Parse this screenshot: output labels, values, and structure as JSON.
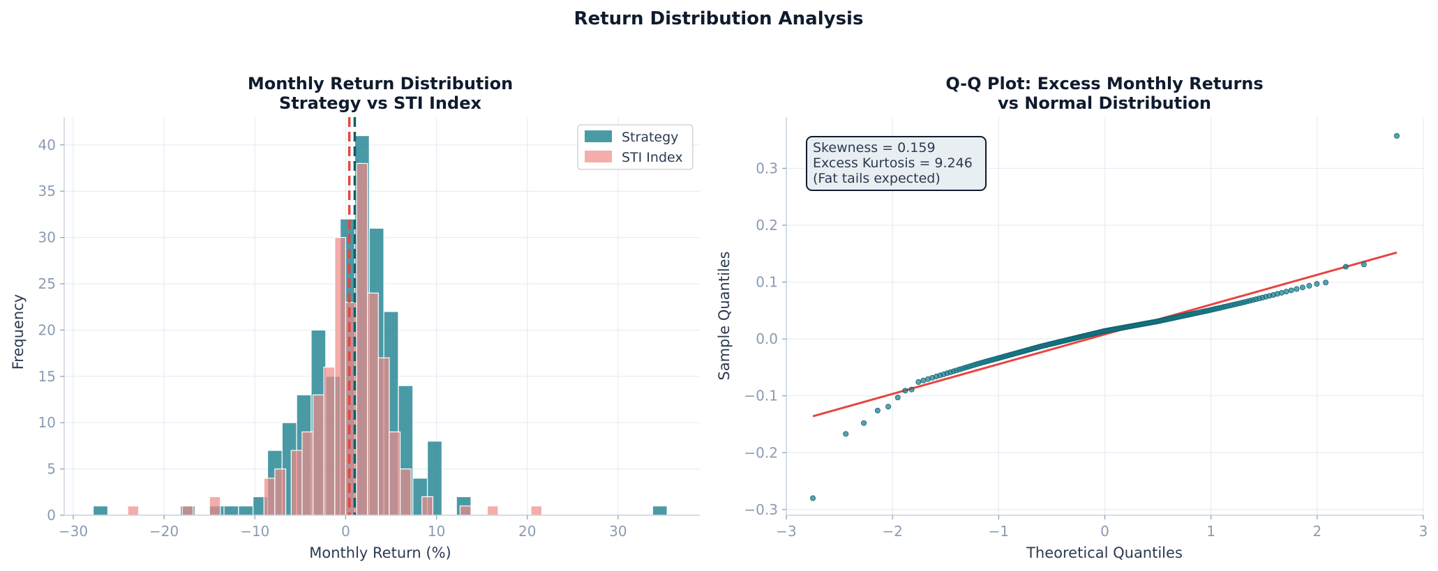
{
  "suptitle": "Return Distribution Analysis",
  "colors": {
    "strategy": "#177e8d",
    "sti": "#f08a87",
    "fit_line": "#e8443f",
    "text": "#0f1b2d"
  },
  "chart_data": [
    {
      "type": "histogram",
      "title_line1": "Monthly Return Distribution",
      "title_line2": "Strategy vs STI Index",
      "xlabel": "Monthly Return (%)",
      "ylabel": "Frequency",
      "xlim": [
        -31,
        39
      ],
      "ylim": [
        0,
        43
      ],
      "xticks": [
        -30,
        -20,
        -10,
        0,
        10,
        20,
        30
      ],
      "yticks": [
        0,
        5,
        10,
        15,
        20,
        25,
        30,
        35,
        40
      ],
      "legend_position": "top-right",
      "grid": true,
      "series": [
        {
          "name": "Strategy",
          "bins": [
            {
              "x0": -27.8,
              "x1": -26.2,
              "count": 1
            },
            {
              "x0": -18.2,
              "x1": -16.6,
              "count": 1
            },
            {
              "x0": -15.0,
              "x1": -13.4,
              "count": 1
            },
            {
              "x0": -13.4,
              "x1": -11.8,
              "count": 1
            },
            {
              "x0": -11.8,
              "x1": -10.2,
              "count": 1
            },
            {
              "x0": -10.2,
              "x1": -8.6,
              "count": 2
            },
            {
              "x0": -8.6,
              "x1": -7.0,
              "count": 7
            },
            {
              "x0": -7.0,
              "x1": -5.4,
              "count": 10
            },
            {
              "x0": -5.4,
              "x1": -3.8,
              "count": 13
            },
            {
              "x0": -3.8,
              "x1": -2.2,
              "count": 20
            },
            {
              "x0": -2.2,
              "x1": -0.6,
              "count": 15
            },
            {
              "x0": -0.6,
              "x1": 1.0,
              "count": 32
            },
            {
              "x0": 1.0,
              "x1": 2.6,
              "count": 41
            },
            {
              "x0": 2.6,
              "x1": 4.2,
              "count": 31
            },
            {
              "x0": 4.2,
              "x1": 5.8,
              "count": 22
            },
            {
              "x0": 5.8,
              "x1": 7.4,
              "count": 14
            },
            {
              "x0": 7.4,
              "x1": 9.0,
              "count": 4
            },
            {
              "x0": 9.0,
              "x1": 10.6,
              "count": 8
            },
            {
              "x0": 10.6,
              "x1": 12.2,
              "count": 0
            },
            {
              "x0": 12.2,
              "x1": 13.8,
              "count": 2
            },
            {
              "x0": 33.8,
              "x1": 35.4,
              "count": 1
            }
          ],
          "mean": 1.0
        },
        {
          "name": "STI Index",
          "bins": [
            {
              "x0": -24.0,
              "x1": -22.8,
              "count": 1
            },
            {
              "x0": -18.0,
              "x1": -16.8,
              "count": 1
            },
            {
              "x0": -15.0,
              "x1": -13.8,
              "count": 2
            },
            {
              "x0": -9.0,
              "x1": -7.8,
              "count": 4
            },
            {
              "x0": -7.8,
              "x1": -6.6,
              "count": 5
            },
            {
              "x0": -6.0,
              "x1": -4.8,
              "count": 7
            },
            {
              "x0": -4.8,
              "x1": -3.6,
              "count": 9
            },
            {
              "x0": -3.6,
              "x1": -2.4,
              "count": 13
            },
            {
              "x0": -2.4,
              "x1": -1.2,
              "count": 16
            },
            {
              "x0": -1.2,
              "x1": 0.0,
              "count": 30
            },
            {
              "x0": 0.0,
              "x1": 1.2,
              "count": 23
            },
            {
              "x0": 1.2,
              "x1": 2.4,
              "count": 38
            },
            {
              "x0": 2.4,
              "x1": 3.6,
              "count": 24
            },
            {
              "x0": 3.6,
              "x1": 4.8,
              "count": 17
            },
            {
              "x0": 4.8,
              "x1": 6.0,
              "count": 9
            },
            {
              "x0": 6.0,
              "x1": 7.2,
              "count": 5
            },
            {
              "x0": 8.4,
              "x1": 9.6,
              "count": 2
            },
            {
              "x0": 12.6,
              "x1": 13.8,
              "count": 1
            },
            {
              "x0": 15.6,
              "x1": 16.8,
              "count": 1
            },
            {
              "x0": 20.4,
              "x1": 21.6,
              "count": 1
            }
          ],
          "mean": 0.4
        }
      ]
    },
    {
      "type": "scatter",
      "title_line1": "Q-Q Plot: Excess Monthly Returns",
      "title_line2": "vs Normal Distribution",
      "xlabel": "Theoretical Quantiles",
      "ylabel": "Sample Quantiles",
      "xlim": [
        -3,
        3
      ],
      "ylim": [
        -0.31,
        0.39
      ],
      "xticks": [
        -3,
        -2,
        -1,
        0,
        1,
        2,
        3
      ],
      "yticks": [
        -0.3,
        -0.2,
        -0.1,
        0.0,
        0.1,
        0.2,
        0.3
      ],
      "ytick_labels": [
        "−0.3",
        "−0.2",
        "−0.1",
        "0.0",
        "0.1",
        "0.2",
        "0.3"
      ],
      "xtick_labels": [
        "−3",
        "−2",
        "−1",
        "0",
        "1",
        "2",
        "3"
      ],
      "stats": {
        "line1": "Skewness = 0.159",
        "line2": "Excess Kurtosis = 9.246",
        "line3": "(Fat tails expected)"
      },
      "fit_line": {
        "x": [
          -2.75,
          2.75
        ],
        "y": [
          -0.136,
          0.152
        ]
      },
      "outliers": [
        [
          -2.75,
          -0.28
        ],
        [
          -2.44,
          -0.167
        ],
        [
          -2.27,
          -0.148
        ],
        [
          -2.14,
          -0.126
        ],
        [
          -2.04,
          -0.119
        ],
        [
          -1.95,
          -0.103
        ],
        [
          -1.88,
          -0.091
        ],
        [
          -1.82,
          -0.089
        ],
        [
          2.27,
          0.127
        ],
        [
          2.44,
          0.131
        ],
        [
          2.75,
          0.357
        ]
      ],
      "body": {
        "n": 180,
        "x_range": [
          -1.76,
          2.15
        ],
        "knots_x": [
          -1.76,
          -1.2,
          -0.6,
          0.0,
          0.5,
          1.0,
          1.3,
          1.6,
          2.0,
          2.15
        ],
        "knots_y": [
          -0.076,
          -0.044,
          -0.013,
          0.014,
          0.031,
          0.051,
          0.064,
          0.078,
          0.097,
          0.101
        ]
      }
    }
  ]
}
